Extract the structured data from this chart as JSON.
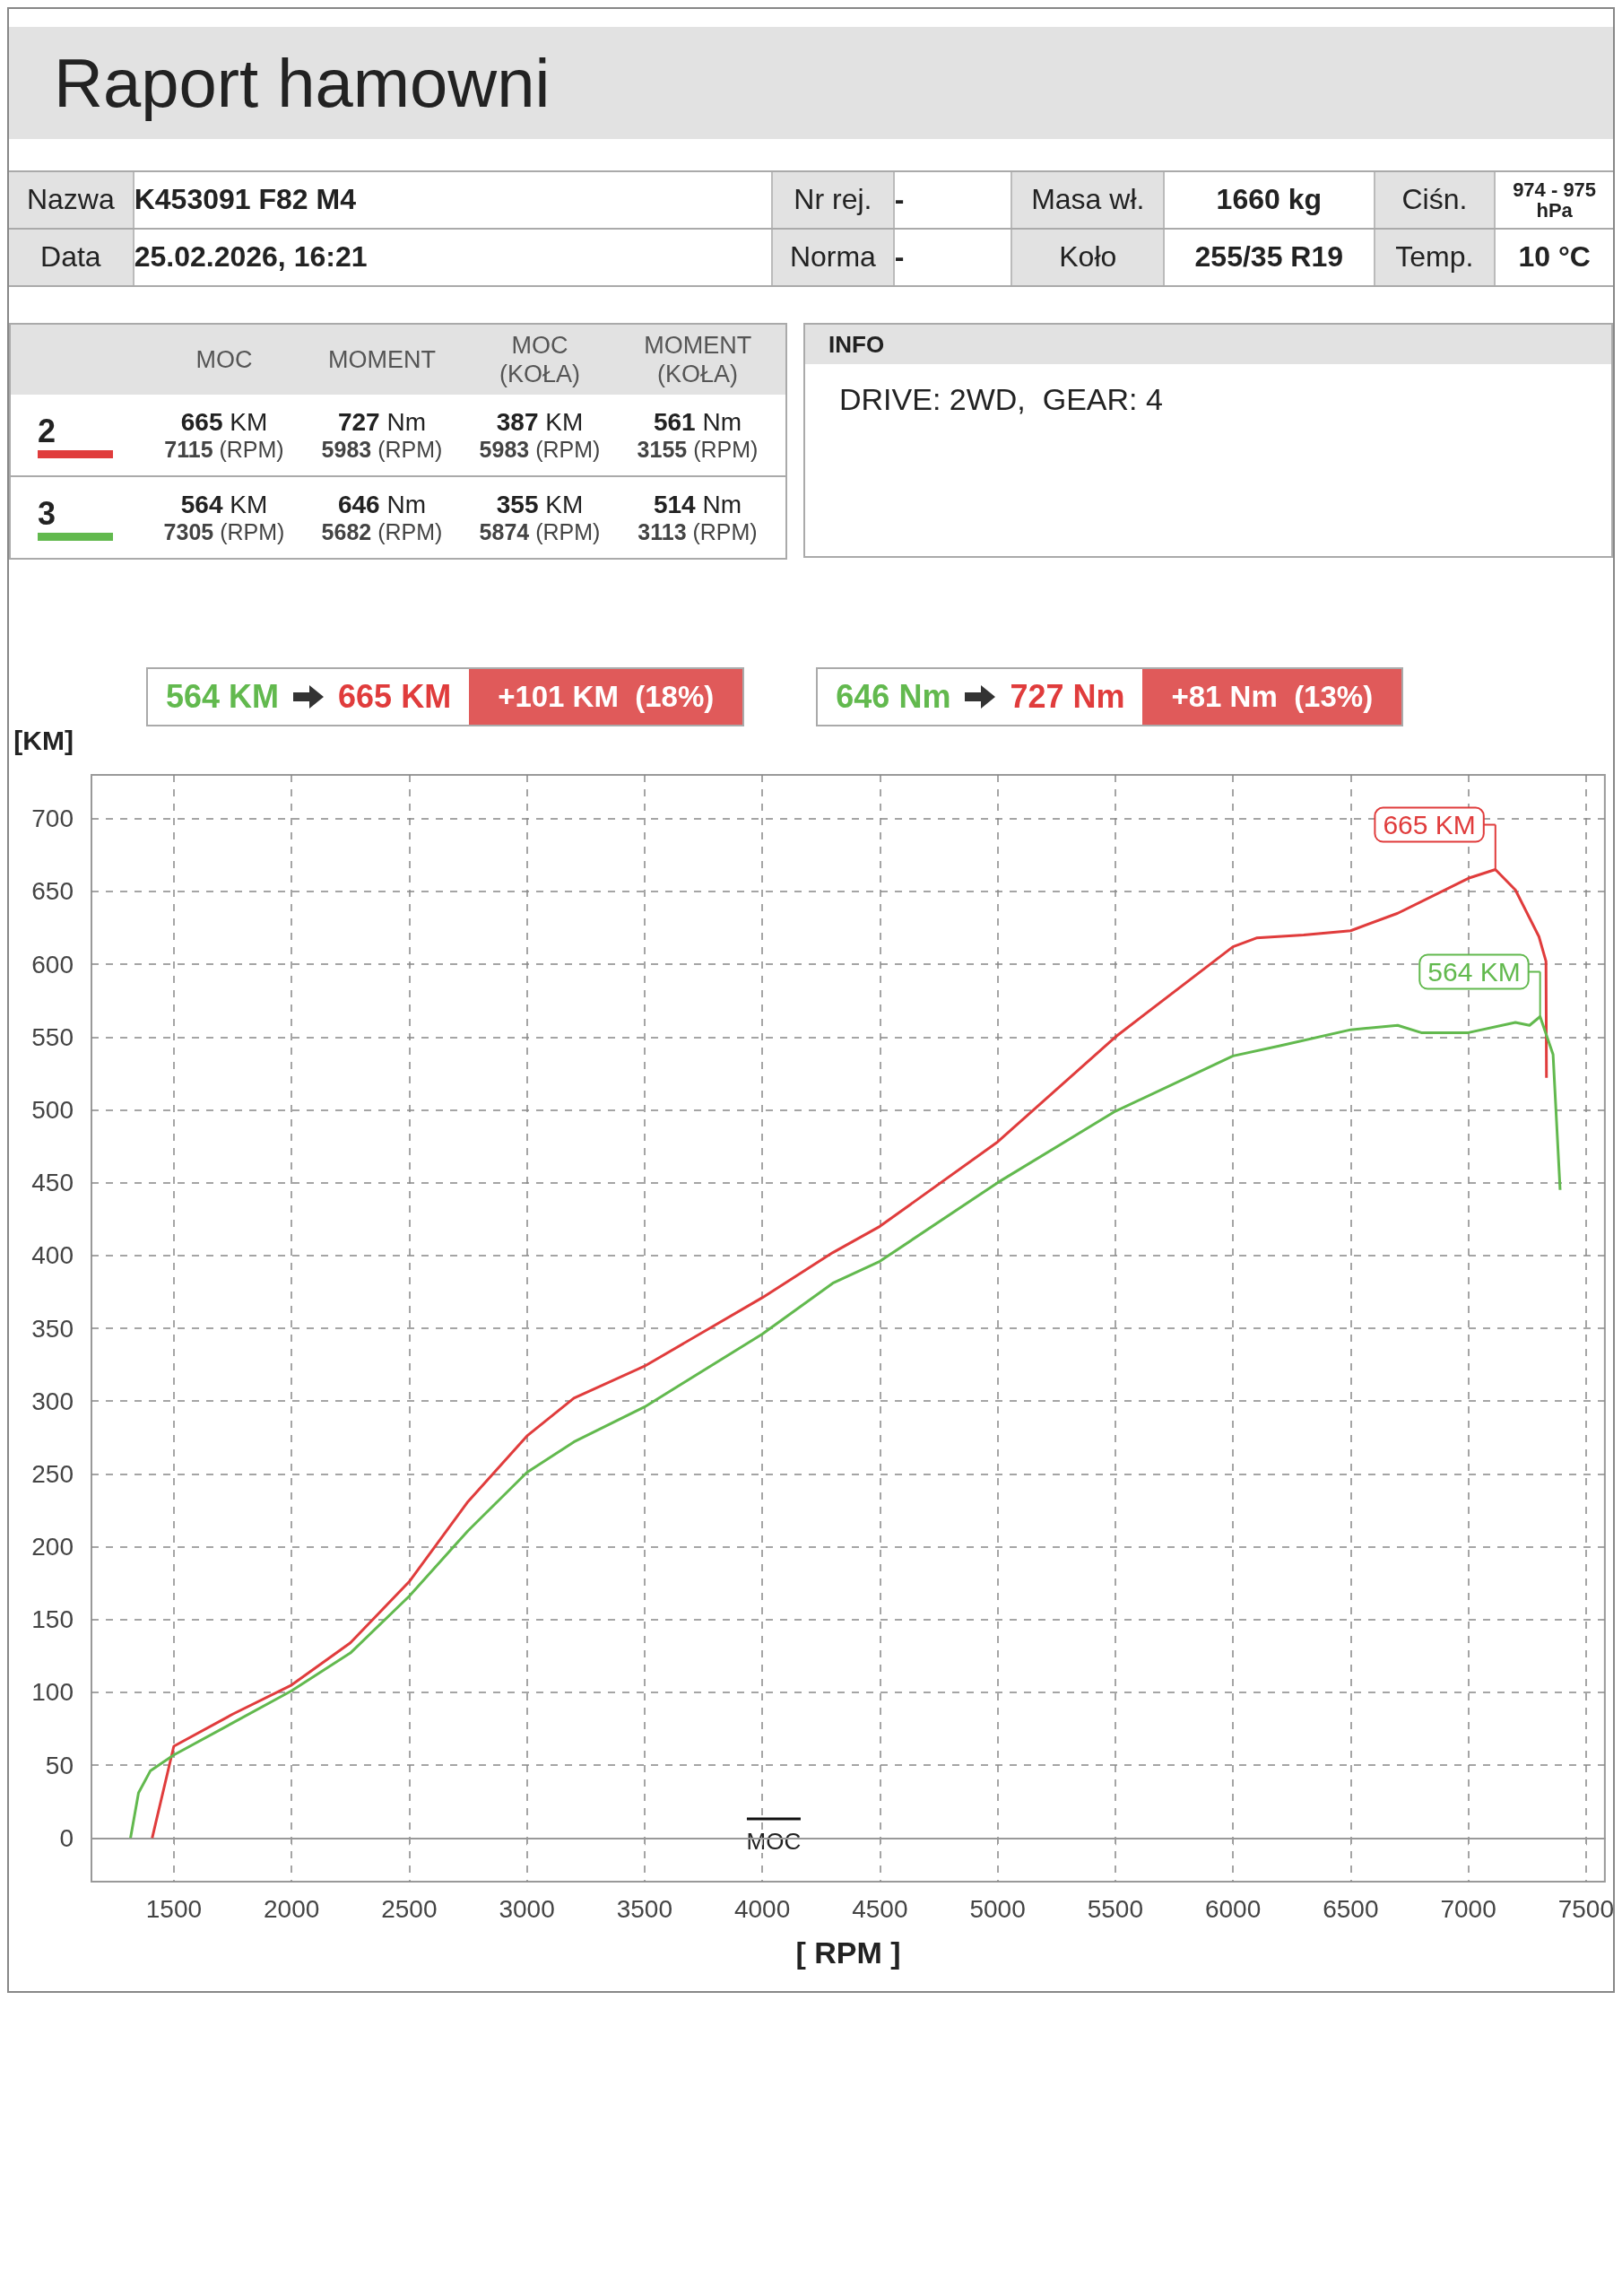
{
  "chart_data": [
    {
      "type": "other",
      "title": "Raport hamowni",
      "annotations": [
        "Nazwa",
        "K453091 F82 M4",
        "Nr rej.",
        "-",
        "Masa wł.",
        "1660 kg",
        "Ciśn.",
        "974 - 975 hPa",
        "Data",
        "25.02.2026, 16:21",
        "Norma",
        "-",
        "Koło",
        "255/35 R19",
        "Temp.",
        "10 °C"
      ]
    },
    {
      "type": "other",
      "categories": [
        "MOC",
        "MOMENT",
        "MOC (KOŁA)",
        "MOMENT (KOŁA)"
      ],
      "annotations": [
        "665 KM",
        "727 Nm",
        "387 KM",
        "561 Nm",
        "7115 (RPM)",
        "5983 (RPM)",
        "5983 (RPM)",
        "3155 (RPM)",
        "564 KM",
        "646 Nm",
        "355 KM",
        "514 Nm",
        "7305 (RPM)",
        "5682 (RPM)",
        "5874 (RPM)",
        "3113 (RPM)"
      ]
    },
    {
      "type": "other",
      "title": "INFO",
      "annotations": [
        "DRIVE: 2WD,  GEAR: 4"
      ]
    },
    {
      "type": "line",
      "ylabel": "[KM]",
      "xlabel": "[ RPM ]",
      "legend_title": "MOC",
      "grid": true,
      "line_style": "solid",
      "marker": "none",
      "xlim": [
        1150,
        7580
      ],
      "xticks": [
        1500,
        2000,
        2500,
        3000,
        3500,
        4000,
        4500,
        5000,
        5500,
        6000,
        6500,
        7000,
        7500
      ],
      "ylim": [
        -30,
        730
      ],
      "yticks": [
        0,
        50,
        100,
        150,
        200,
        250,
        300,
        350,
        400,
        450,
        500,
        550,
        600,
        650,
        700
      ],
      "series": [
        {
          "name": "2",
          "color": "#e03c3c",
          "x": [
            1408,
            1500,
            1750,
            2000,
            2250,
            2500,
            2750,
            3000,
            3200,
            3500,
            4000,
            4300,
            4500,
            5000,
            5500,
            6000,
            6100,
            6300,
            6500,
            6700,
            7000,
            7115,
            7200,
            7300,
            7330,
            7332
          ],
          "values": [
            0,
            63,
            85,
            105,
            134,
            176,
            231,
            276,
            302,
            324,
            371,
            402,
            420,
            478,
            550,
            612,
            618,
            620,
            623,
            635,
            659,
            665,
            651,
            619,
            602,
            522
          ]
        },
        {
          "name": "3",
          "color": "#62b94e",
          "x": [
            1316,
            1350,
            1400,
            1500,
            2000,
            2250,
            2500,
            2750,
            3000,
            3200,
            3500,
            4000,
            4300,
            4500,
            5000,
            5500,
            6000,
            6200,
            6500,
            6700,
            6800,
            7000,
            7200,
            7260,
            7305,
            7360,
            7390
          ],
          "values": [
            0,
            31,
            46,
            57,
            101,
            127,
            166,
            211,
            251,
            272,
            296,
            346,
            381,
            396,
            450,
            499,
            537,
            544,
            555,
            558,
            553,
            553,
            560,
            558,
            564,
            538,
            445
          ]
        }
      ],
      "annotations": [
        "564 KM",
        "665 KM",
        "+101 KM  (18%)",
        "646 Nm",
        "727 Nm",
        "+81 Nm  (13%)",
        {
          "text": "665 KM",
          "x": 7115,
          "y": 665
        },
        {
          "text": "564 KM",
          "x": 7305,
          "y": 564
        }
      ]
    }
  ]
}
